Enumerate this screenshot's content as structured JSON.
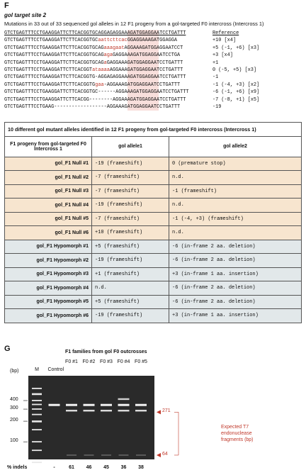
{
  "panel_f": {
    "label": "F",
    "title": "gol target site 2",
    "subtitle": "Mutations in 33 out of 33 sequenced gol alleles in 12 F1 progeny from a gol-targeted F0 intercross (Intercross 1)",
    "alignment": [
      {
        "parts": [
          "GTCTGAGTTTCCTGAAGGATTCTTCACGGTGCAGGAGAGGAAAGATGGAGGAATCCTGATTT"
        ],
        "note": "Reference"
      },
      {
        "parts": [
          "GTCTGAGTTTCCTGAAGGATTCTTCACGGTGC",
          "aattcttcac",
          "GGAGGAAAGATGGAGGA"
        ],
        "note": "+10 [x4]"
      },
      {
        "parts": [
          "GTCTGAGTTTCCTGAAGGATTCTTCACGGTGCAG",
          "aaagaat",
          "AGGAAAGATGGAGGAATCCT"
        ],
        "note": "+5 (-1, +6) [x3]"
      },
      {
        "parts": [
          "GTCTGAGTTTCCTGAAGGATTCTTCACGGTGCAG",
          "aga",
          "GAGGAAAGATGGAGGAATCCTGA"
        ],
        "note": "+3 [x4]"
      },
      {
        "parts": [
          "GTCTGAGTTTCCTGAAGGATTCTTCACGGTGCAG",
          "a",
          "GAGGAAAGATGGAGGAATCCTGATTT"
        ],
        "note": "+1"
      },
      {
        "parts": [
          "GTCTGAGTTTCCTGAAGGATTCTTCACGGT",
          "ataaaa",
          "AGGAAAGATGGAGGAATCCTGATTT"
        ],
        "note": "0 (-5, +5) [x3]"
      },
      {
        "parts": [
          "GTCTGAGTTTCCTGAAGGATTCTTCACGGTG-AGGAGAGGAAAGATGGAGGAATCCTGATTT"
        ],
        "note": "-1"
      },
      {
        "parts": [
          "GTCTGAGTTTCCTGAAGGATTCTTCACGGTG",
          "gaa",
          "-AGGAAAGATGGAGGAATCCTGATTT"
        ],
        "note": "-1 (-4, +3) [x2]"
      },
      {
        "parts": [
          "GTCTGAGTTTCCTGAAGGATTCTTCACGGTGC------AGGAAAGATGGAGGAATCCTGATTT"
        ],
        "note": "-6 (-1, +6) [x9]"
      },
      {
        "parts": [
          "GTCTGAGTTTCCTGAAGGATTCTTCACGG--------AGGAAAGATGGAGGAATCCTGATTT"
        ],
        "note": "-7 (-8, +1) [x5]"
      },
      {
        "parts": [
          "GTCTGAGTTTCCTGAAG------------------AGGAAAGATGGAGGAATCCTGATTT"
        ],
        "note": "-19"
      }
    ],
    "table": {
      "caption": "10 different gol mutant alleles identified in 12 F1 progeny from gol-targeted F0 intercross (Intercross 1)",
      "columns": [
        "F1 progeny from gol-targeted F0 Intercross 1",
        "gol allele1",
        "gol allele2"
      ],
      "null_rows": [
        [
          "gol_F1 Null #1",
          "-19 (frameshift)",
          "0 (premature stop)"
        ],
        [
          "gol_F1 Null #2",
          "-7 (frameshift)",
          "n.d."
        ],
        [
          "gol_F1 Null #3",
          "-7 (frameshift)",
          "-1 (frameshift)"
        ],
        [
          "gol_F1 Null #4",
          "-19 (frameshift)",
          "n.d."
        ],
        [
          "gol_F1 Null #5",
          "-7 (frameshift)",
          "-1 (-4, +3) (frameshift)"
        ],
        [
          "gol_F1 Null #6",
          "+10 (frameshift)",
          "n.d."
        ]
      ],
      "hypomorph_rows": [
        [
          "gol_F1 Hypomorph #1",
          "+5 (frameshift)",
          "-6 (in-frame 2 aa. deletion)"
        ],
        [
          "gol_F1 Hypomorph #2",
          "-19 (frameshift)",
          "-6 (in-frame 2 aa. deletion)"
        ],
        [
          "gol_F1 Hypomorph #3",
          "+1 (frameshift)",
          "+3 (in-frame 1 aa. insertion)"
        ],
        [
          "gol_F1 Hypomorph #4",
          "n.d.",
          "-6 (in-frame 2 aa. deletion)"
        ],
        [
          "gol_F1 Hypomorph #5",
          "+5 (frameshift)",
          "-6 (in-frame 2 aa. deletion)"
        ],
        [
          "gol_F1 Hypomorph #6",
          "-19 (frameshift)",
          "+3 (in-frame 1 aa. insertion)"
        ]
      ]
    }
  },
  "panel_g": {
    "label": "G",
    "header": "F1 families from gol F0 outcrosses",
    "bp_unit": "(bp)",
    "lanes": [
      "M",
      "Control",
      "F0 #1",
      "F0 #2",
      "F0 #3",
      "F0 #4",
      "F0 #5"
    ],
    "ladder": [
      400,
      300,
      200,
      100
    ],
    "fragments": [
      271,
      64
    ],
    "annotation": "Expected T7 endonuclease fragments (bp)",
    "indels_label": "% indels",
    "indels": [
      "-",
      61,
      46,
      45,
      36,
      38
    ]
  }
}
